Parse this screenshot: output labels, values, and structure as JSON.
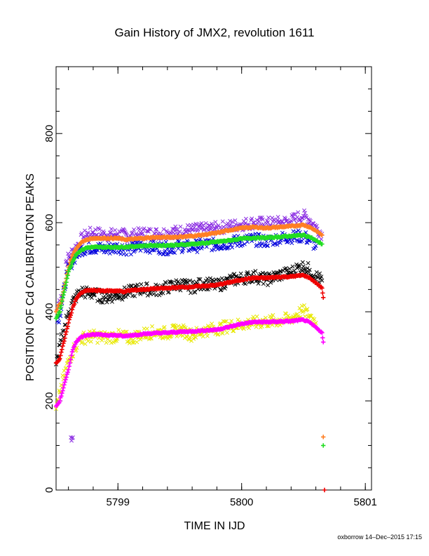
{
  "chart_data": {
    "type": "scatter",
    "title": "Gain History of JMX2, revolution 1611",
    "xlabel": "TIME IN IJD",
    "ylabel": "POSITION OF Cd CALIBRATION PEAKS",
    "xlim": [
      5798.5,
      5801.05
    ],
    "ylim": [
      0,
      950
    ],
    "x_ticks": [
      5799,
      5800,
      5801
    ],
    "y_ticks": [
      0,
      200,
      400,
      600,
      800
    ],
    "grid": false,
    "legend": "none",
    "series": [
      {
        "color": "#8a2be2",
        "marker": "x",
        "points": [
          [
            5798.51,
            405
          ],
          [
            5798.52,
            418
          ],
          [
            5798.54,
            435
          ],
          [
            5798.62,
            118
          ],
          [
            5798.635,
            118
          ],
          [
            5798.58,
            512
          ],
          [
            5798.62,
            530
          ],
          [
            5798.67,
            548
          ],
          [
            5798.72,
            568
          ],
          [
            5798.8,
            578
          ],
          [
            5798.9,
            572
          ],
          [
            5799.0,
            574
          ],
          [
            5799.1,
            570
          ],
          [
            5799.2,
            576
          ],
          [
            5799.3,
            575
          ],
          [
            5799.4,
            578
          ],
          [
            5799.5,
            580
          ],
          [
            5799.6,
            584
          ],
          [
            5799.7,
            585
          ],
          [
            5799.8,
            588
          ],
          [
            5799.9,
            592
          ],
          [
            5800.0,
            596
          ],
          [
            5800.1,
            600
          ],
          [
            5800.2,
            598
          ],
          [
            5800.3,
            600
          ],
          [
            5800.4,
            604
          ],
          [
            5800.45,
            612
          ],
          [
            5800.5,
            615
          ],
          [
            5800.55,
            606
          ],
          [
            5800.6,
            590
          ],
          [
            5800.65,
            575
          ]
        ]
      },
      {
        "color": "#0000dd",
        "marker": "x",
        "points": [
          [
            5798.51,
            378
          ],
          [
            5798.53,
            392
          ],
          [
            5798.59,
            490
          ],
          [
            5798.64,
            518
          ],
          [
            5798.7,
            540
          ],
          [
            5798.8,
            545
          ],
          [
            5798.9,
            540
          ],
          [
            5799.0,
            545
          ],
          [
            5799.1,
            540
          ],
          [
            5799.2,
            548
          ],
          [
            5799.3,
            545
          ],
          [
            5799.4,
            542
          ],
          [
            5799.5,
            548
          ],
          [
            5799.6,
            545
          ],
          [
            5799.7,
            552
          ],
          [
            5799.8,
            550
          ],
          [
            5799.9,
            555
          ],
          [
            5800.0,
            560
          ],
          [
            5800.1,
            562
          ],
          [
            5800.2,
            558
          ],
          [
            5800.3,
            565
          ],
          [
            5800.4,
            568
          ],
          [
            5800.5,
            570
          ],
          [
            5800.55,
            560
          ],
          [
            5800.6,
            548
          ]
        ]
      },
      {
        "color": "#000000",
        "marker": "x",
        "points": [
          [
            5798.5,
            282
          ],
          [
            5798.52,
            300
          ],
          [
            5798.53,
            325
          ],
          [
            5798.6,
            400
          ],
          [
            5798.65,
            430
          ],
          [
            5798.7,
            445
          ],
          [
            5798.8,
            440
          ],
          [
            5798.9,
            432
          ],
          [
            5799.0,
            438
          ],
          [
            5799.1,
            445
          ],
          [
            5799.2,
            452
          ],
          [
            5799.3,
            448
          ],
          [
            5799.4,
            455
          ],
          [
            5799.5,
            462
          ],
          [
            5799.6,
            455
          ],
          [
            5799.7,
            465
          ],
          [
            5799.8,
            458
          ],
          [
            5799.9,
            470
          ],
          [
            5800.0,
            475
          ],
          [
            5800.1,
            480
          ],
          [
            5800.2,
            472
          ],
          [
            5800.3,
            482
          ],
          [
            5800.4,
            488
          ],
          [
            5800.45,
            498
          ],
          [
            5800.5,
            502
          ],
          [
            5800.55,
            494
          ],
          [
            5800.6,
            480
          ],
          [
            5800.65,
            470
          ]
        ]
      },
      {
        "color": "#e8e800",
        "marker": "x",
        "points": [
          [
            5798.5,
            182
          ],
          [
            5798.52,
            200
          ],
          [
            5798.53,
            220
          ],
          [
            5798.6,
            290
          ],
          [
            5798.65,
            320
          ],
          [
            5798.7,
            340
          ],
          [
            5798.8,
            345
          ],
          [
            5798.9,
            342
          ],
          [
            5799.0,
            346
          ],
          [
            5799.1,
            340
          ],
          [
            5799.2,
            350
          ],
          [
            5799.3,
            355
          ],
          [
            5799.4,
            352
          ],
          [
            5799.5,
            360
          ],
          [
            5799.6,
            348
          ],
          [
            5799.7,
            358
          ],
          [
            5799.8,
            362
          ],
          [
            5799.9,
            368
          ],
          [
            5800.0,
            372
          ],
          [
            5800.1,
            375
          ],
          [
            5800.2,
            378
          ],
          [
            5800.3,
            380
          ],
          [
            5800.4,
            385
          ],
          [
            5800.45,
            395
          ],
          [
            5800.5,
            402
          ],
          [
            5800.55,
            392
          ],
          [
            5800.6,
            375
          ]
        ]
      },
      {
        "color": "#ff7f24",
        "marker": "+",
        "points": [
          [
            5798.5,
            400
          ],
          [
            5798.52,
            415
          ],
          [
            5798.54,
            420
          ],
          [
            5798.6,
            500
          ],
          [
            5798.63,
            525
          ],
          [
            5798.66,
            540
          ],
          [
            5798.7,
            555
          ],
          [
            5798.75,
            562
          ],
          [
            5798.8,
            565
          ],
          [
            5798.9,
            565
          ],
          [
            5799.0,
            565
          ],
          [
            5799.05,
            562
          ],
          [
            5799.1,
            563
          ],
          [
            5799.2,
            565
          ],
          [
            5799.3,
            567
          ],
          [
            5799.4,
            567
          ],
          [
            5799.5,
            568
          ],
          [
            5799.6,
            570
          ],
          [
            5799.7,
            573
          ],
          [
            5799.8,
            577
          ],
          [
            5799.9,
            583
          ],
          [
            5800.0,
            588
          ],
          [
            5800.1,
            590
          ],
          [
            5800.2,
            588
          ],
          [
            5800.3,
            590
          ],
          [
            5800.4,
            592
          ],
          [
            5800.5,
            595
          ],
          [
            5800.55,
            590
          ],
          [
            5800.6,
            582
          ],
          [
            5800.65,
            572
          ],
          [
            5800.66,
            119
          ]
        ]
      },
      {
        "color": "#22dd22",
        "marker": "+",
        "points": [
          [
            5798.5,
            385
          ],
          [
            5798.52,
            395
          ],
          [
            5798.53,
            400
          ],
          [
            5798.6,
            490
          ],
          [
            5798.63,
            510
          ],
          [
            5798.66,
            528
          ],
          [
            5798.7,
            538
          ],
          [
            5798.75,
            544
          ],
          [
            5798.8,
            545
          ],
          [
            5798.9,
            545
          ],
          [
            5799.0,
            545
          ],
          [
            5799.1,
            546
          ],
          [
            5799.2,
            548
          ],
          [
            5799.3,
            549
          ],
          [
            5799.4,
            549
          ],
          [
            5799.5,
            550
          ],
          [
            5799.6,
            552
          ],
          [
            5799.7,
            554
          ],
          [
            5799.8,
            557
          ],
          [
            5799.9,
            560
          ],
          [
            5800.0,
            564
          ],
          [
            5800.1,
            566
          ],
          [
            5800.2,
            566
          ],
          [
            5800.3,
            568
          ],
          [
            5800.4,
            570
          ],
          [
            5800.5,
            572
          ],
          [
            5800.55,
            568
          ],
          [
            5800.6,
            560
          ],
          [
            5800.65,
            552
          ],
          [
            5800.66,
            100
          ]
        ]
      },
      {
        "color": "#ee0000",
        "marker": "+",
        "points": [
          [
            5798.5,
            285
          ],
          [
            5798.52,
            290
          ],
          [
            5798.53,
            295
          ],
          [
            5798.6,
            375
          ],
          [
            5798.63,
            405
          ],
          [
            5798.66,
            428
          ],
          [
            5798.7,
            442
          ],
          [
            5798.75,
            448
          ],
          [
            5798.8,
            448
          ],
          [
            5798.9,
            447
          ],
          [
            5799.0,
            447
          ],
          [
            5799.05,
            445
          ],
          [
            5799.1,
            448
          ],
          [
            5799.2,
            450
          ],
          [
            5799.3,
            452
          ],
          [
            5799.4,
            453
          ],
          [
            5799.5,
            455
          ],
          [
            5799.6,
            456
          ],
          [
            5799.7,
            458
          ],
          [
            5799.8,
            460
          ],
          [
            5799.9,
            466
          ],
          [
            5800.0,
            472
          ],
          [
            5800.1,
            476
          ],
          [
            5800.2,
            476
          ],
          [
            5800.3,
            478
          ],
          [
            5800.4,
            479
          ],
          [
            5800.5,
            482
          ],
          [
            5800.55,
            476
          ],
          [
            5800.6,
            465
          ],
          [
            5800.65,
            453
          ],
          [
            5800.66,
            432
          ],
          [
            5800.67,
            0
          ]
        ]
      },
      {
        "color": "#ff00ff",
        "marker": "+",
        "points": [
          [
            5798.5,
            188
          ],
          [
            5798.52,
            195
          ],
          [
            5798.53,
            200
          ],
          [
            5798.6,
            270
          ],
          [
            5798.63,
            310
          ],
          [
            5798.66,
            332
          ],
          [
            5798.7,
            343
          ],
          [
            5798.75,
            348
          ],
          [
            5798.8,
            349
          ],
          [
            5798.9,
            348
          ],
          [
            5799.0,
            347
          ],
          [
            5799.05,
            345
          ],
          [
            5799.1,
            347
          ],
          [
            5799.2,
            350
          ],
          [
            5799.3,
            352
          ],
          [
            5799.4,
            353
          ],
          [
            5799.5,
            355
          ],
          [
            5799.6,
            356
          ],
          [
            5799.7,
            358
          ],
          [
            5799.8,
            360
          ],
          [
            5799.9,
            366
          ],
          [
            5800.0,
            373
          ],
          [
            5800.1,
            377
          ],
          [
            5800.2,
            377
          ],
          [
            5800.3,
            378
          ],
          [
            5800.4,
            379
          ],
          [
            5800.5,
            382
          ],
          [
            5800.55,
            376
          ],
          [
            5800.6,
            365
          ],
          [
            5800.65,
            353
          ],
          [
            5800.66,
            332
          ]
        ]
      }
    ]
  },
  "footer": "oxborrow 14–Dec–2015 17:15"
}
